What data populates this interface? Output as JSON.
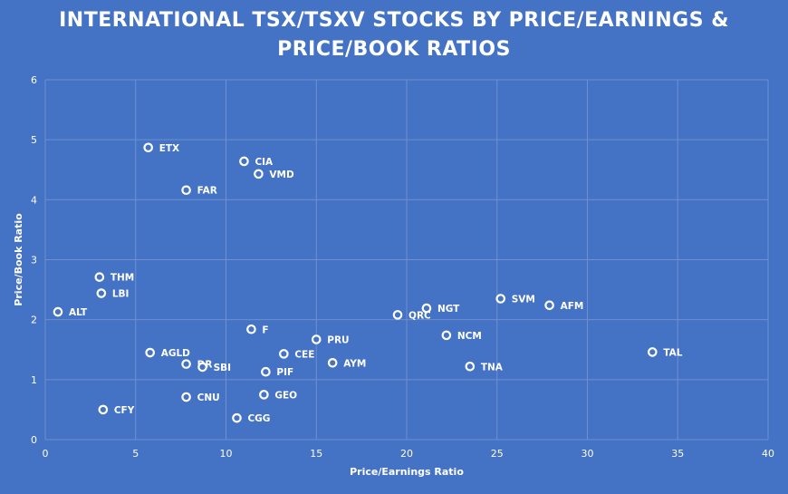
{
  "chart_data": {
    "type": "scatter",
    "title_line1": "INTERNATIONAL TSX/TSXV STOCKS BY PRICE/EARNINGS &",
    "title_line2": "PRICE/BOOK RATIOS",
    "xlabel": "Price/Earnings Ratio",
    "ylabel": "Price/Book Ratio",
    "xlim": [
      0,
      40
    ],
    "ylim": [
      0,
      6
    ],
    "xticks": [
      0,
      5,
      10,
      15,
      20,
      25,
      30,
      35,
      40
    ],
    "yticks": [
      0,
      1,
      2,
      3,
      4,
      5,
      6
    ],
    "grid": true,
    "points": [
      {
        "label": "ETX",
        "x": 5.7,
        "y": 4.87
      },
      {
        "label": "CIA",
        "x": 11.0,
        "y": 4.64
      },
      {
        "label": "VMD",
        "x": 11.8,
        "y": 4.43
      },
      {
        "label": "FAR",
        "x": 7.8,
        "y": 4.16
      },
      {
        "label": "THM",
        "x": 3.0,
        "y": 2.71
      },
      {
        "label": "LBI",
        "x": 3.1,
        "y": 2.44
      },
      {
        "label": "ALT",
        "x": 0.7,
        "y": 2.13
      },
      {
        "label": "F",
        "x": 11.4,
        "y": 1.84
      },
      {
        "label": "PRU",
        "x": 15.0,
        "y": 1.67
      },
      {
        "label": "AGLD",
        "x": 5.8,
        "y": 1.45
      },
      {
        "label": "DR",
        "x": 7.8,
        "y": 1.26
      },
      {
        "label": "SBI",
        "x": 8.7,
        "y": 1.21
      },
      {
        "label": "CEE",
        "x": 13.2,
        "y": 1.43
      },
      {
        "label": "PIF",
        "x": 12.2,
        "y": 1.13
      },
      {
        "label": "AYM",
        "x": 15.9,
        "y": 1.28
      },
      {
        "label": "GEO",
        "x": 12.1,
        "y": 0.75
      },
      {
        "label": "CNU",
        "x": 7.8,
        "y": 0.71
      },
      {
        "label": "CFY",
        "x": 3.2,
        "y": 0.5
      },
      {
        "label": "CGG",
        "x": 10.6,
        "y": 0.36
      },
      {
        "label": "QRC",
        "x": 19.5,
        "y": 2.08
      },
      {
        "label": "NGT",
        "x": 21.1,
        "y": 2.19
      },
      {
        "label": "NCM",
        "x": 22.2,
        "y": 1.74
      },
      {
        "label": "TNA",
        "x": 23.5,
        "y": 1.22
      },
      {
        "label": "SVM",
        "x": 25.2,
        "y": 2.35
      },
      {
        "label": "AFM",
        "x": 27.9,
        "y": 2.24
      },
      {
        "label": "TAL",
        "x": 33.6,
        "y": 1.46
      }
    ],
    "colors": {
      "background": "#4472C4",
      "gridline": "#6E8FD0",
      "marker_stroke": "#FFFFFF",
      "text": "#FFFFFF"
    }
  }
}
